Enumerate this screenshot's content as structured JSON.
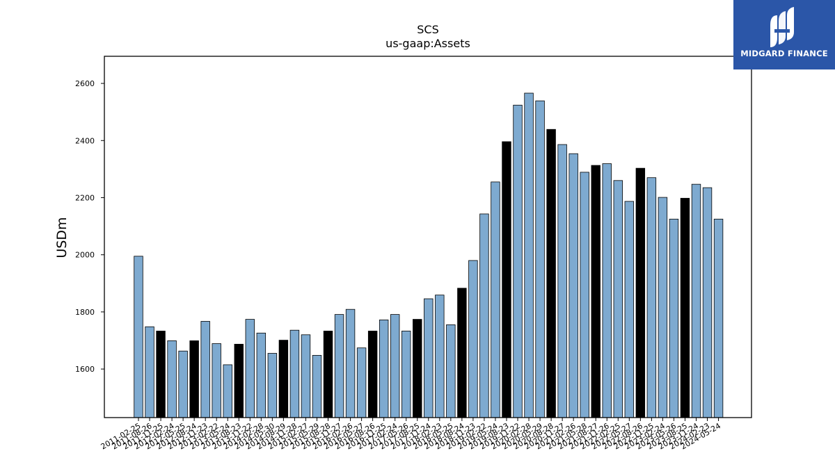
{
  "chart_data": {
    "type": "bar",
    "title": "SCS",
    "subtitle": "us-gaap:Assets",
    "ylabel": "USDm",
    "xlabel": "",
    "ylim": [
      1430,
      2695
    ],
    "yticks": [
      1600,
      1800,
      2000,
      2200,
      2400,
      2600
    ],
    "grid": false,
    "categories": [
      "2011-02-25",
      "2011-08-26",
      "2011-11-25",
      "2012-02-24",
      "2012-05-25",
      "2012-08-24",
      "2012-11-23",
      "2013-02-22",
      "2013-05-24",
      "2013-08-23",
      "2013-11-22",
      "2014-02-28",
      "2014-05-30",
      "2014-08-29",
      "2014-11-28",
      "2015-02-27",
      "2015-05-29",
      "2015-08-28",
      "2015-11-27",
      "2016-02-26",
      "2016-05-27",
      "2016-08-26",
      "2016-11-25",
      "2017-02-24",
      "2017-05-26",
      "2017-08-25",
      "2017-11-24",
      "2018-02-23",
      "2018-05-25",
      "2018-08-24",
      "2018-11-23",
      "2019-02-22",
      "2019-05-24",
      "2019-08-23",
      "2019-11-22",
      "2020-02-28",
      "2020-05-29",
      "2020-08-28",
      "2020-11-27",
      "2021-02-26",
      "2021-05-28",
      "2021-08-27",
      "2021-11-26",
      "2022-02-25",
      "2022-05-27",
      "2022-08-26",
      "2022-11-25",
      "2023-02-24",
      "2023-05-26",
      "2023-08-25",
      "2023-11-24",
      "2024-02-23",
      "2024-05-24"
    ],
    "values": [
      1995,
      1748,
      1733,
      1699,
      1663,
      1699,
      1767,
      1689,
      1615,
      1687,
      1774,
      1726,
      1655,
      1701,
      1736,
      1720,
      1648,
      1733,
      1791,
      1809,
      1674,
      1733,
      1772,
      1791,
      1733,
      1774,
      1846,
      1859,
      1755,
      1883,
      1980,
      2143,
      2255,
      2396,
      2524,
      2566,
      2539,
      2439,
      2386,
      2354,
      2289,
      2313,
      2319,
      2260,
      2187,
      2303,
      2270,
      2201,
      2125,
      2198,
      2247,
      2235,
      2125
    ],
    "highlighted_categories": [
      "2011-11-25",
      "2012-08-24",
      "2013-08-23",
      "2014-08-29",
      "2015-08-28",
      "2016-08-26",
      "2017-08-25",
      "2018-08-24",
      "2019-08-23",
      "2020-08-28",
      "2021-08-27",
      "2022-08-26",
      "2023-08-25"
    ],
    "colors": {
      "bar": "#7eaad0",
      "highlight": "#000000",
      "edge": "#000000"
    }
  },
  "logo": {
    "text": "MIDGARD FINANCE",
    "background": "#2b56a8"
  }
}
